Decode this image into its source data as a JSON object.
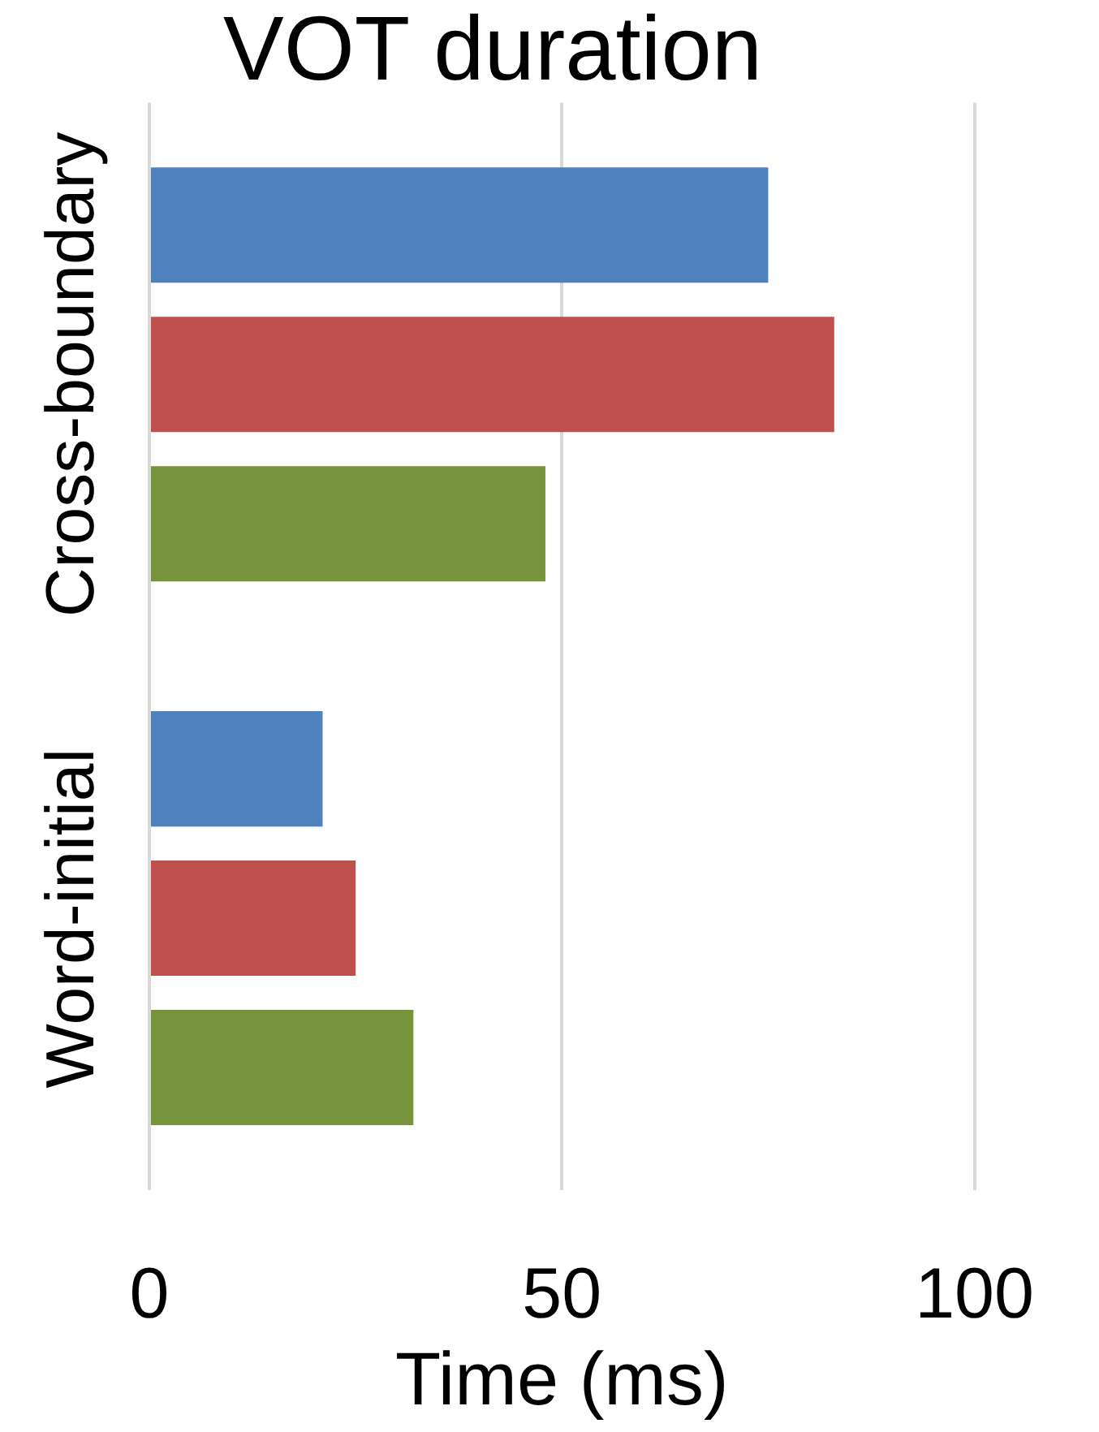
{
  "chart_data": {
    "type": "bar",
    "orientation": "horizontal",
    "title": "VOT duration",
    "xlabel": "Time (ms)",
    "categories": [
      "Cross-boundary",
      "Word-initial"
    ],
    "series": [
      {
        "color": "#4f81bd",
        "values": [
          75,
          21
        ]
      },
      {
        "color": "#c0504d",
        "values": [
          83,
          25
        ]
      },
      {
        "color": "#77933c",
        "values": [
          48,
          32
        ]
      }
    ],
    "xlim": [
      0,
      100
    ],
    "xticks": [
      0,
      50,
      100
    ],
    "grid": "x",
    "legend": false
  }
}
